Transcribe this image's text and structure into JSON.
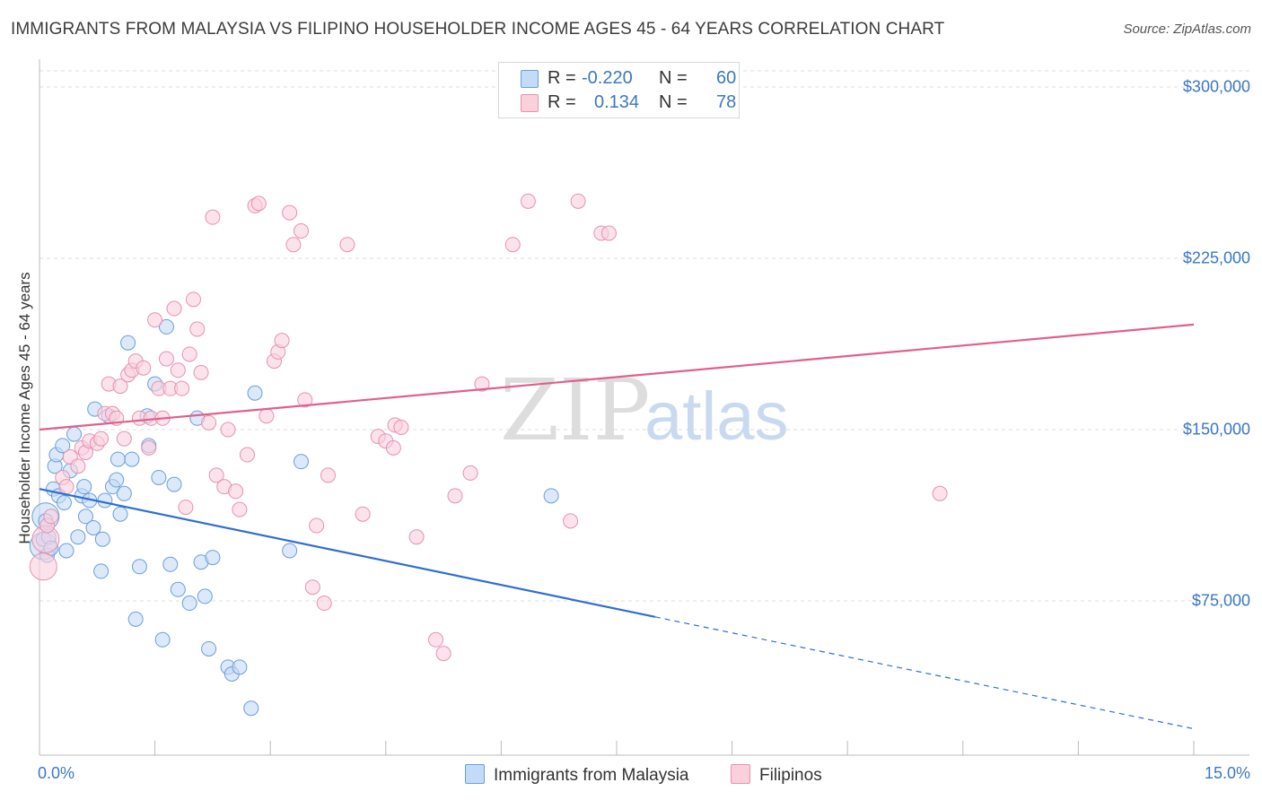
{
  "title": "IMMIGRANTS FROM MALAYSIA VS FILIPINO HOUSEHOLDER INCOME AGES 45 - 64 YEARS CORRELATION CHART",
  "source": "Source: ZipAtlas.com",
  "watermark": {
    "zip": "ZIP",
    "atlas": "atlas"
  },
  "legend_top": {
    "rows": [
      {
        "r_label": "R =",
        "r_value": "-0.220",
        "n_label": "N =",
        "n_value": "60",
        "color": "#a9c8f0",
        "border": "#6a9fd8"
      },
      {
        "r_label": "R =",
        "r_value": "0.134",
        "n_label": "N =",
        "n_value": "78",
        "color": "#f7bfd0",
        "border": "#e592ad"
      }
    ]
  },
  "legend_bottom": [
    {
      "label": "Immigrants from Malaysia",
      "color": "#c4dbf7",
      "border": "#6a9fd8"
    },
    {
      "label": "Filipinos",
      "color": "#fad0dd",
      "border": "#e592ad"
    }
  ],
  "chart_data": {
    "type": "scatter",
    "title": "IMMIGRANTS FROM MALAYSIA VS FILIPINO HOUSEHOLDER INCOME AGES 45 - 64 YEARS CORRELATION CHART",
    "xlabel": "",
    "ylabel": "Householder Income Ages 45 - 64 years",
    "xlim": [
      0,
      15
    ],
    "ylim": [
      0,
      310000
    ],
    "x_tick_labels": [
      "0.0%",
      "15.0%"
    ],
    "y_ticks": [
      {
        "value": 75000,
        "label": "$75,000"
      },
      {
        "value": 150000,
        "label": "$150,000"
      },
      {
        "value": 225000,
        "label": "$225,000"
      },
      {
        "value": 300000,
        "label": "$300,000"
      }
    ],
    "grid": true,
    "series": [
      {
        "name": "Immigrants from Malaysia",
        "color": "#6a9fd8",
        "fill": "#c4dbf7",
        "trend": {
          "x0": 0,
          "y0": 124000,
          "x1": 8.0,
          "y1": 68000,
          "dash_to_x": 15,
          "dash_to_y": 19000,
          "color": "#2f6fcf"
        },
        "points": [
          [
            0.05,
            102000
          ],
          [
            0.08,
            110000
          ],
          [
            0.1,
            95000
          ],
          [
            0.12,
            103000
          ],
          [
            0.15,
            98000
          ],
          [
            0.18,
            124000
          ],
          [
            0.2,
            134000
          ],
          [
            0.22,
            139000
          ],
          [
            0.25,
            121000
          ],
          [
            0.3,
            143000
          ],
          [
            0.32,
            118000
          ],
          [
            0.35,
            97000
          ],
          [
            0.4,
            132000
          ],
          [
            0.45,
            148000
          ],
          [
            0.5,
            103000
          ],
          [
            0.55,
            121000
          ],
          [
            0.58,
            125000
          ],
          [
            0.6,
            112000
          ],
          [
            0.65,
            119000
          ],
          [
            0.7,
            107000
          ],
          [
            0.72,
            159000
          ],
          [
            0.8,
            88000
          ],
          [
            0.82,
            102000
          ],
          [
            0.85,
            119000
          ],
          [
            0.9,
            156000
          ],
          [
            0.95,
            125000
          ],
          [
            1.0,
            128000
          ],
          [
            1.02,
            137000
          ],
          [
            1.05,
            113000
          ],
          [
            1.1,
            122000
          ],
          [
            1.15,
            188000
          ],
          [
            1.2,
            137000
          ],
          [
            1.25,
            67000
          ],
          [
            1.3,
            90000
          ],
          [
            1.4,
            156000
          ],
          [
            1.42,
            143000
          ],
          [
            1.5,
            170000
          ],
          [
            1.55,
            129000
          ],
          [
            1.6,
            58000
          ],
          [
            1.65,
            195000
          ],
          [
            1.7,
            91000
          ],
          [
            1.75,
            126000
          ],
          [
            1.8,
            80000
          ],
          [
            1.95,
            74000
          ],
          [
            2.05,
            155000
          ],
          [
            2.1,
            92000
          ],
          [
            2.15,
            77000
          ],
          [
            2.2,
            54000
          ],
          [
            2.25,
            94000
          ],
          [
            2.45,
            46000
          ],
          [
            2.5,
            43000
          ],
          [
            2.6,
            46000
          ],
          [
            2.75,
            28000
          ],
          [
            2.8,
            166000
          ],
          [
            3.25,
            97000
          ],
          [
            3.4,
            136000
          ],
          [
            6.65,
            121000
          ]
        ],
        "large_points": [
          [
            0.05,
            99000
          ],
          [
            0.08,
            112000
          ]
        ]
      },
      {
        "name": "Filipinos",
        "color": "#e592ad",
        "fill": "#fad0dd",
        "trend": {
          "x0": 0,
          "y0": 150000,
          "x1": 15,
          "y1": 196000,
          "color": "#e0608a"
        },
        "points": [
          [
            0.1,
            108000
          ],
          [
            0.15,
            112000
          ],
          [
            0.3,
            129000
          ],
          [
            0.35,
            125000
          ],
          [
            0.4,
            138000
          ],
          [
            0.5,
            134000
          ],
          [
            0.55,
            142000
          ],
          [
            0.6,
            140000
          ],
          [
            0.65,
            145000
          ],
          [
            0.75,
            144000
          ],
          [
            0.8,
            146000
          ],
          [
            0.85,
            157000
          ],
          [
            0.9,
            170000
          ],
          [
            0.95,
            157000
          ],
          [
            1.0,
            155000
          ],
          [
            1.05,
            169000
          ],
          [
            1.1,
            146000
          ],
          [
            1.15,
            174000
          ],
          [
            1.2,
            176000
          ],
          [
            1.25,
            180000
          ],
          [
            1.3,
            155000
          ],
          [
            1.35,
            177000
          ],
          [
            1.42,
            142000
          ],
          [
            1.45,
            155000
          ],
          [
            1.5,
            198000
          ],
          [
            1.55,
            168000
          ],
          [
            1.6,
            155000
          ],
          [
            1.65,
            181000
          ],
          [
            1.7,
            168000
          ],
          [
            1.75,
            203000
          ],
          [
            1.8,
            176000
          ],
          [
            1.85,
            168000
          ],
          [
            1.9,
            116000
          ],
          [
            1.95,
            183000
          ],
          [
            2.0,
            207000
          ],
          [
            2.05,
            194000
          ],
          [
            2.1,
            175000
          ],
          [
            2.2,
            153000
          ],
          [
            2.25,
            243000
          ],
          [
            2.3,
            130000
          ],
          [
            2.4,
            125000
          ],
          [
            2.45,
            150000
          ],
          [
            2.55,
            123000
          ],
          [
            2.6,
            115000
          ],
          [
            2.7,
            139000
          ],
          [
            2.8,
            248000
          ],
          [
            2.85,
            249000
          ],
          [
            2.95,
            156000
          ],
          [
            3.05,
            180000
          ],
          [
            3.1,
            184000
          ],
          [
            3.15,
            189000
          ],
          [
            3.25,
            245000
          ],
          [
            3.3,
            231000
          ],
          [
            3.4,
            237000
          ],
          [
            3.45,
            163000
          ],
          [
            3.55,
            81000
          ],
          [
            3.6,
            108000
          ],
          [
            3.7,
            74000
          ],
          [
            3.75,
            130000
          ],
          [
            4.0,
            231000
          ],
          [
            4.2,
            113000
          ],
          [
            4.4,
            147000
          ],
          [
            4.5,
            145000
          ],
          [
            4.6,
            142000
          ],
          [
            4.62,
            152000
          ],
          [
            4.7,
            151000
          ],
          [
            4.9,
            103000
          ],
          [
            5.15,
            58000
          ],
          [
            5.25,
            52000
          ],
          [
            5.4,
            121000
          ],
          [
            5.6,
            131000
          ],
          [
            5.75,
            170000
          ],
          [
            6.15,
            231000
          ],
          [
            6.35,
            250000
          ],
          [
            6.9,
            110000
          ],
          [
            7.0,
            250000
          ],
          [
            7.3,
            236000
          ],
          [
            7.4,
            236000
          ],
          [
            11.7,
            122000
          ]
        ],
        "large_points": [
          [
            0.05,
            90000
          ],
          [
            0.08,
            102000
          ]
        ]
      }
    ]
  }
}
